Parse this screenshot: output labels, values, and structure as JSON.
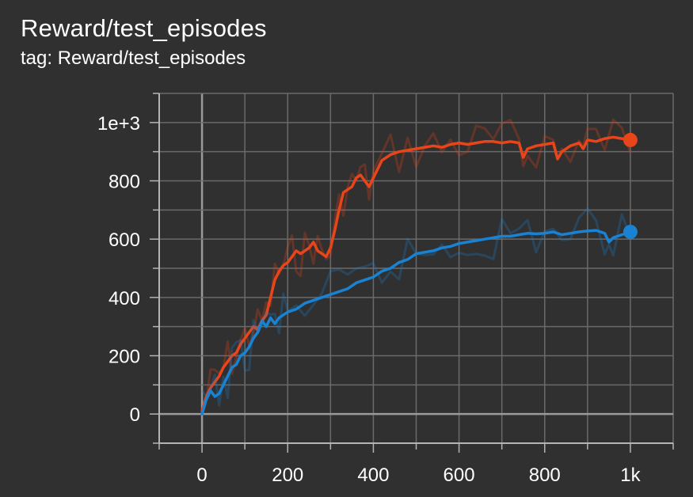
{
  "header": {
    "title": "Reward/test_episodes",
    "subtitle": "tag: Reward/test_episodes"
  },
  "colors": {
    "background": "#303030",
    "grid": "#6a6a6a",
    "axis": "#b4b4b4",
    "zero_line": "#9a9a9a",
    "series_orange": "#e8451a",
    "series_blue": "#1a82d2"
  },
  "chart_data": {
    "type": "line",
    "title": "Reward/test_episodes",
    "xlabel": "",
    "ylabel": "",
    "xlim": [
      -100,
      1100
    ],
    "ylim": [
      -100,
      1100
    ],
    "x_ticks": [
      0,
      200,
      400,
      600,
      800,
      1000
    ],
    "x_tick_labels": [
      "0",
      "200",
      "400",
      "600",
      "800",
      "1k"
    ],
    "y_ticks": [
      0,
      200,
      400,
      600,
      800,
      1000
    ],
    "y_tick_labels": [
      "0",
      "200",
      "400",
      "600",
      "800",
      "1e+3"
    ],
    "grid": true,
    "smoothed": true,
    "series": [
      {
        "color": "#e8451a",
        "x": [
          0,
          10,
          20,
          30,
          40,
          50,
          60,
          70,
          80,
          90,
          100,
          110,
          120,
          130,
          140,
          150,
          160,
          170,
          180,
          190,
          200,
          210,
          220,
          230,
          240,
          250,
          260,
          270,
          280,
          290,
          300,
          310,
          320,
          330,
          340,
          350,
          360,
          370,
          380,
          390,
          400,
          420,
          440,
          460,
          480,
          500,
          520,
          540,
          560,
          580,
          600,
          620,
          640,
          660,
          680,
          700,
          720,
          740,
          750,
          760,
          780,
          800,
          820,
          830,
          840,
          860,
          880,
          890,
          900,
          920,
          940,
          960,
          980,
          1000
        ],
        "values": [
          10,
          60,
          90,
          110,
          130,
          160,
          180,
          200,
          210,
          240,
          260,
          280,
          300,
          290,
          320,
          340,
          400,
          460,
          490,
          510,
          520,
          540,
          560,
          550,
          560,
          570,
          590,
          560,
          550,
          540,
          570,
          630,
          700,
          760,
          770,
          780,
          810,
          820,
          800,
          780,
          810,
          870,
          890,
          900,
          905,
          910,
          915,
          920,
          915,
          925,
          930,
          925,
          930,
          935,
          935,
          930,
          935,
          930,
          880,
          910,
          920,
          925,
          930,
          875,
          900,
          920,
          930,
          910,
          940,
          935,
          945,
          950,
          945,
          940
        ]
      },
      {
        "color": "#1a82d2",
        "x": [
          0,
          10,
          20,
          30,
          40,
          50,
          60,
          70,
          80,
          90,
          100,
          110,
          120,
          130,
          140,
          150,
          160,
          170,
          180,
          190,
          200,
          220,
          240,
          260,
          280,
          300,
          320,
          340,
          360,
          380,
          400,
          420,
          440,
          460,
          480,
          500,
          520,
          540,
          560,
          580,
          600,
          620,
          640,
          660,
          680,
          700,
          720,
          740,
          760,
          780,
          800,
          820,
          840,
          860,
          880,
          900,
          920,
          940,
          950,
          960,
          980,
          1000
        ],
        "values": [
          0,
          50,
          80,
          60,
          70,
          100,
          130,
          160,
          170,
          200,
          210,
          230,
          260,
          280,
          320,
          300,
          330,
          310,
          330,
          340,
          350,
          360,
          380,
          390,
          400,
          410,
          420,
          430,
          450,
          460,
          470,
          490,
          500,
          520,
          530,
          550,
          555,
          560,
          570,
          575,
          585,
          590,
          595,
          600,
          605,
          610,
          610,
          615,
          620,
          618,
          620,
          625,
          615,
          620,
          625,
          628,
          630,
          620,
          590,
          605,
          615,
          625
        ]
      }
    ]
  }
}
